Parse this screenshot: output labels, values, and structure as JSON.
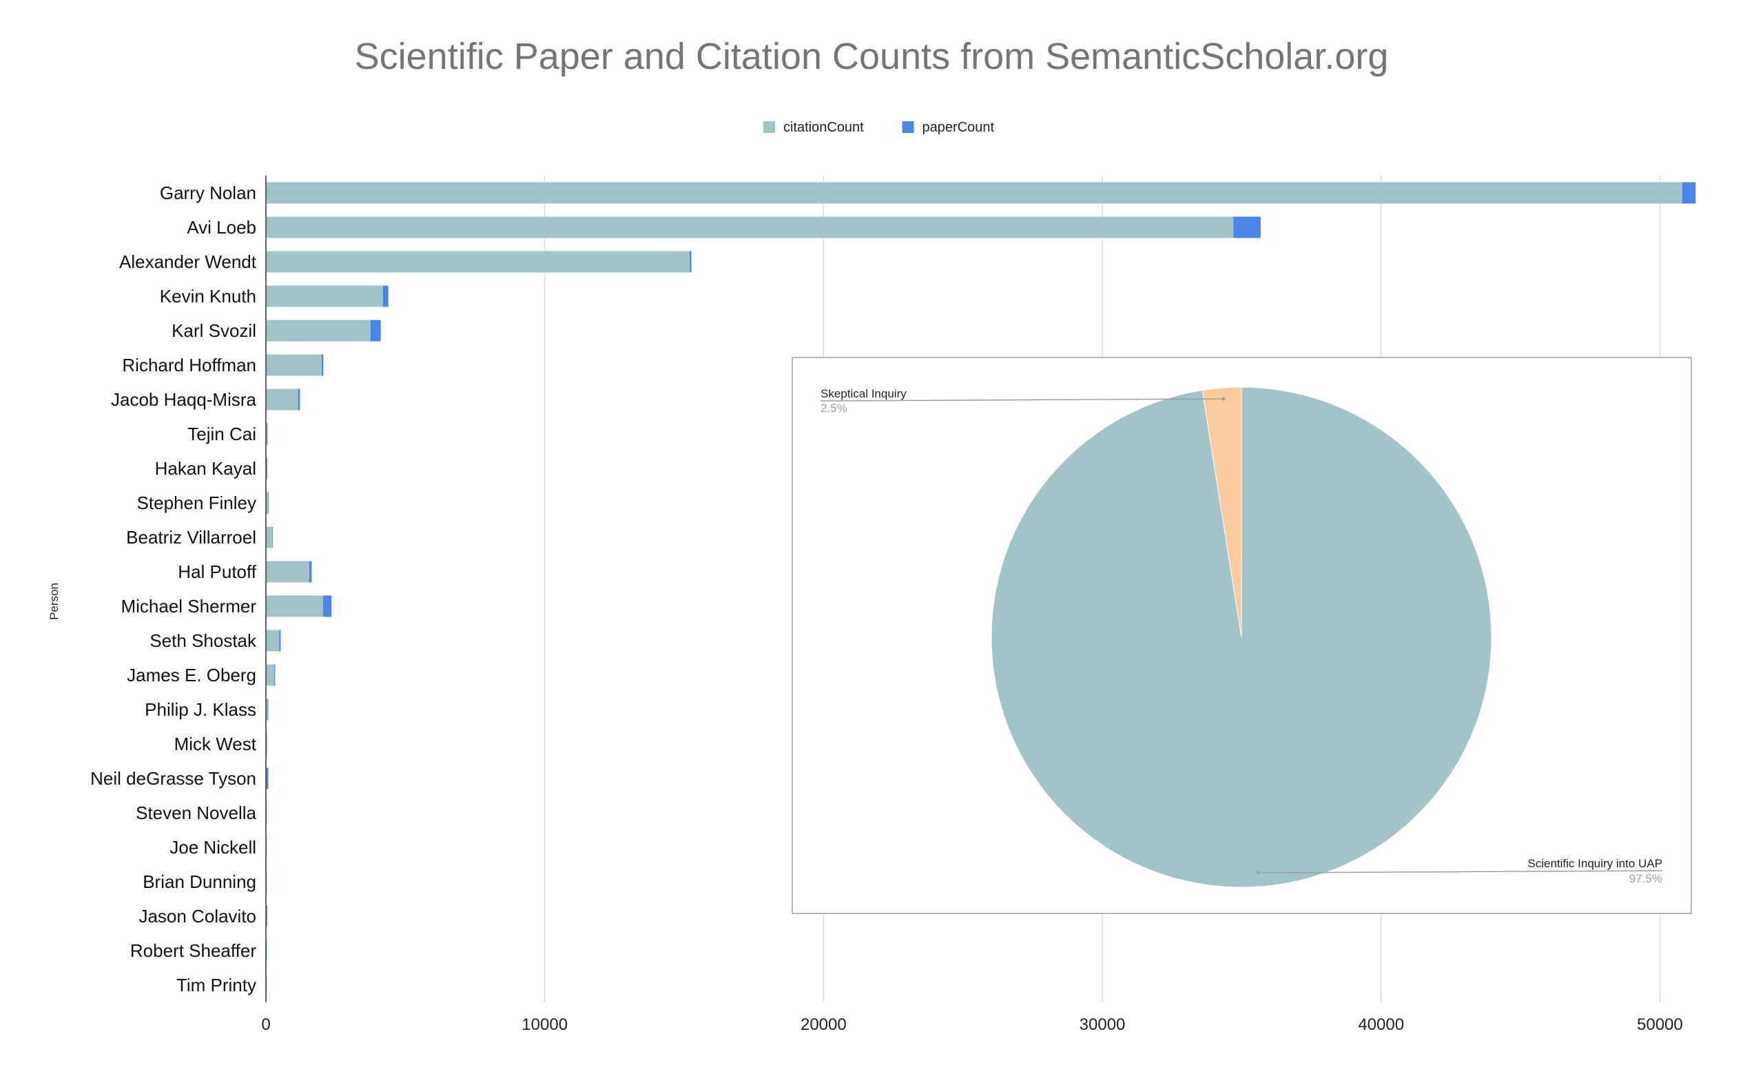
{
  "chart_data": [
    {
      "type": "bar",
      "orientation": "horizontal",
      "stacked": true,
      "title": "Scientific Paper and Citation Counts from SemanticScholar.org",
      "ylabel": "Person",
      "xlabel": "",
      "xlim": [
        0,
        51300
      ],
      "xticks": [
        0,
        10000,
        20000,
        30000,
        40000,
        50000
      ],
      "xtick_labels": [
        "0",
        "10000",
        "20000",
        "30000",
        "40000",
        "50000"
      ],
      "grid": true,
      "legend_position": "top",
      "categories": [
        "Garry Nolan",
        "Avi Loeb",
        "Alexander Wendt",
        "Kevin Knuth",
        "Karl Svozil",
        "Richard Hoffman",
        "Jacob Haqq-Misra",
        "Tejin Cai",
        "Hakan Kayal",
        "Stephen Finley",
        "Beatriz Villarroel",
        "Hal Putoff",
        "Michael Shermer",
        "Seth Shostak",
        "James E. Oberg",
        "Philip J. Klass",
        "Mick West",
        "Neil deGrasse Tyson",
        "Steven Novella",
        "Joe Nickell",
        "Brian Dunning",
        "Jason Colavito",
        "Robert Sheaffer",
        "Tim Printy"
      ],
      "series": [
        {
          "name": "citationCount",
          "color": "#a2c4c9",
          "values": [
            50800,
            34700,
            15200,
            4200,
            3750,
            2000,
            1150,
            40,
            30,
            80,
            230,
            1550,
            2050,
            480,
            300,
            60,
            20,
            25,
            8,
            5,
            5,
            30,
            10,
            3
          ]
        },
        {
          "name": "paperCount",
          "color": "#4a86e8",
          "values": [
            480,
            980,
            60,
            190,
            370,
            60,
            70,
            20,
            15,
            10,
            20,
            90,
            300,
            50,
            30,
            25,
            5,
            60,
            10,
            10,
            5,
            15,
            10,
            5
          ]
        }
      ]
    },
    {
      "type": "pie",
      "title": "",
      "slices": [
        {
          "label": "Scientific Inquiry into UAP",
          "value": 97.5,
          "display": "97.5%",
          "color": "#a2c4c9"
        },
        {
          "label": "Skeptical Inquiry",
          "value": 2.5,
          "display": "2.5%",
          "color": "#f9cb9c"
        }
      ]
    }
  ]
}
